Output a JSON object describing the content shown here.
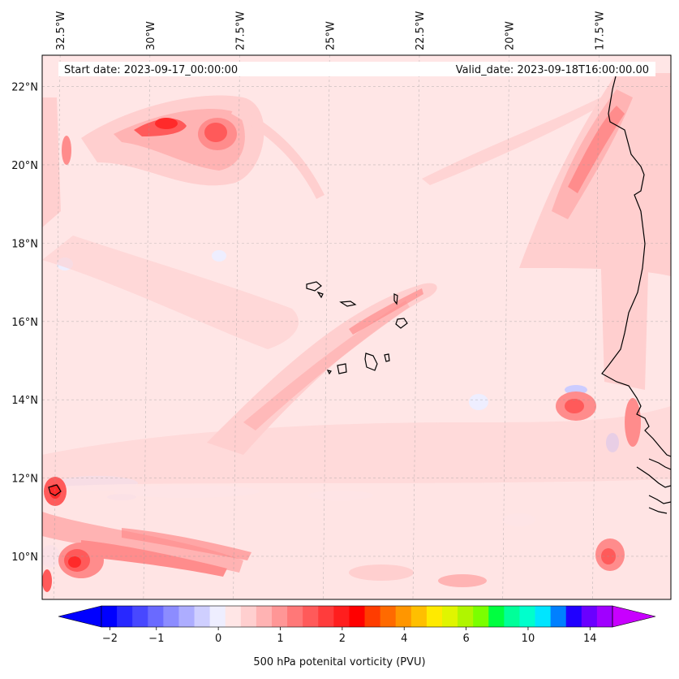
{
  "header": {
    "start_date": "Start date: 2023-09-17_00:00:00",
    "valid_date": "Valid_date: 2023-09-18T16:00:00.00"
  },
  "map": {
    "extent": {
      "lon": [
        -33,
        -15.5
      ],
      "lat": [
        8.9,
        22.8
      ]
    },
    "lon_ticks": [
      {
        "value": -32.5,
        "label": "32.5°W"
      },
      {
        "value": -30,
        "label": "30°W"
      },
      {
        "value": -27.5,
        "label": "27.5°W"
      },
      {
        "value": -25,
        "label": "25°W"
      },
      {
        "value": -22.5,
        "label": "22.5°W"
      },
      {
        "value": -20,
        "label": "20°W"
      },
      {
        "value": -17.5,
        "label": "17.5°W"
      }
    ],
    "lat_ticks": [
      {
        "value": 22,
        "label": "22°N"
      },
      {
        "value": 20,
        "label": "20°N"
      },
      {
        "value": 18,
        "label": "18°N"
      },
      {
        "value": 16,
        "label": "16°N"
      },
      {
        "value": 14,
        "label": "14°N"
      },
      {
        "value": 12,
        "label": "12°N"
      },
      {
        "value": 10,
        "label": "10°N"
      }
    ],
    "field_colors": {
      "neg_light": "#eeeeff",
      "neg_mid": "#ccccff",
      "pos_1": "#ffe6e6",
      "pos_2": "#ffcfcf",
      "pos_3": "#ffb3b3",
      "pos_4": "#ff8c8c",
      "pos_5": "#ff5a5a",
      "pos_6": "#ff2a2a"
    }
  },
  "colorbar": {
    "title": "500 hPa potenital vorticity (PVU)",
    "ticks": [
      {
        "label": "−2",
        "index": 0
      },
      {
        "label": "−1",
        "index": 3
      },
      {
        "label": "0",
        "index": 7
      },
      {
        "label": "1",
        "index": 11
      },
      {
        "label": "2",
        "index": 15
      },
      {
        "label": "4",
        "index": 19
      },
      {
        "label": "6",
        "index": 23
      },
      {
        "label": "10",
        "index": 27
      },
      {
        "label": "14",
        "index": 31
      }
    ],
    "colors": [
      "#0000ff",
      "#2828ff",
      "#4848ff",
      "#6a6aff",
      "#8c8cff",
      "#adadff",
      "#cfcfff",
      "#eeeeff",
      "#ffe6e6",
      "#ffcfcf",
      "#ffb3b3",
      "#ff9696",
      "#ff7878",
      "#ff5a5a",
      "#ff3c3c",
      "#ff1e1e",
      "#ff0000",
      "#ff3c00",
      "#ff6a00",
      "#ff9600",
      "#ffbf00",
      "#ffea00",
      "#e0f500",
      "#b0f500",
      "#7aff00",
      "#00ff40",
      "#00ff99",
      "#00ffcc",
      "#00e5ff",
      "#0080ff",
      "#2000ff",
      "#6a00ff",
      "#a000ff"
    ],
    "over_color": "#c800ff",
    "under_color": "#0000ff"
  }
}
